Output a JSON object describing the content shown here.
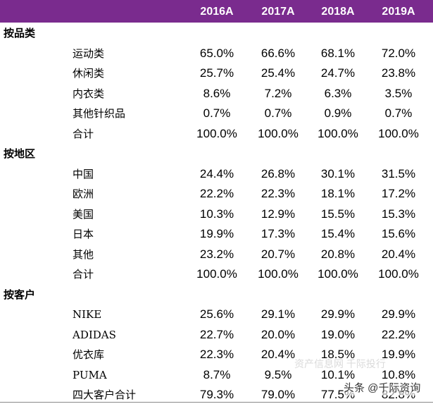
{
  "table": {
    "columns": [
      "2016A",
      "2017A",
      "2018A",
      "2019A"
    ],
    "sections": [
      {
        "title": "按品类",
        "rows": [
          {
            "label": "运动类",
            "values": [
              "65.0%",
              "66.6%",
              "68.1%",
              "72.0%"
            ]
          },
          {
            "label": "休闲类",
            "values": [
              "25.7%",
              "25.4%",
              "24.7%",
              "23.8%"
            ]
          },
          {
            "label": "内衣类",
            "values": [
              "8.6%",
              "7.2%",
              "6.3%",
              "3.5%"
            ]
          },
          {
            "label": "其他针织品",
            "values": [
              "0.7%",
              "0.7%",
              "0.9%",
              "0.7%"
            ]
          },
          {
            "label": "合计",
            "values": [
              "100.0%",
              "100.0%",
              "100.0%",
              "100.0%"
            ]
          }
        ]
      },
      {
        "title": "按地区",
        "rows": [
          {
            "label": "中国",
            "values": [
              "24.4%",
              "26.8%",
              "30.1%",
              "31.5%"
            ]
          },
          {
            "label": "欧洲",
            "values": [
              "22.2%",
              "22.3%",
              "18.1%",
              "17.2%"
            ]
          },
          {
            "label": "美国",
            "values": [
              "10.3%",
              "12.9%",
              "15.5%",
              "15.3%"
            ]
          },
          {
            "label": "日本",
            "values": [
              "19.9%",
              "17.3%",
              "15.4%",
              "15.6%"
            ]
          },
          {
            "label": "其他",
            "values": [
              "23.2%",
              "20.7%",
              "20.8%",
              "20.4%"
            ]
          },
          {
            "label": "合计",
            "values": [
              "100.0%",
              "100.0%",
              "100.0%",
              "100.0%"
            ]
          }
        ]
      },
      {
        "title": "按客户",
        "rows": [
          {
            "label": "NIKE",
            "values": [
              "25.6%",
              "29.1%",
              "29.9%",
              "29.9%"
            ]
          },
          {
            "label": "ADIDAS",
            "values": [
              "22.7%",
              "20.0%",
              "19.0%",
              "22.2%"
            ]
          },
          {
            "label": "优衣库",
            "values": [
              "22.3%",
              "20.4%",
              "18.5%",
              "19.9%"
            ]
          },
          {
            "label": "PUMA",
            "values": [
              "8.7%",
              "9.5%",
              "10.1%",
              "10.8%"
            ]
          },
          {
            "label": "四大客户合计",
            "values": [
              "79.3%",
              "79.0%",
              "77.5%",
              "82.8%"
            ]
          }
        ]
      }
    ]
  },
  "watermarks": [
    "资产信息网 千际投行",
    "头条 @千际资询"
  ]
}
